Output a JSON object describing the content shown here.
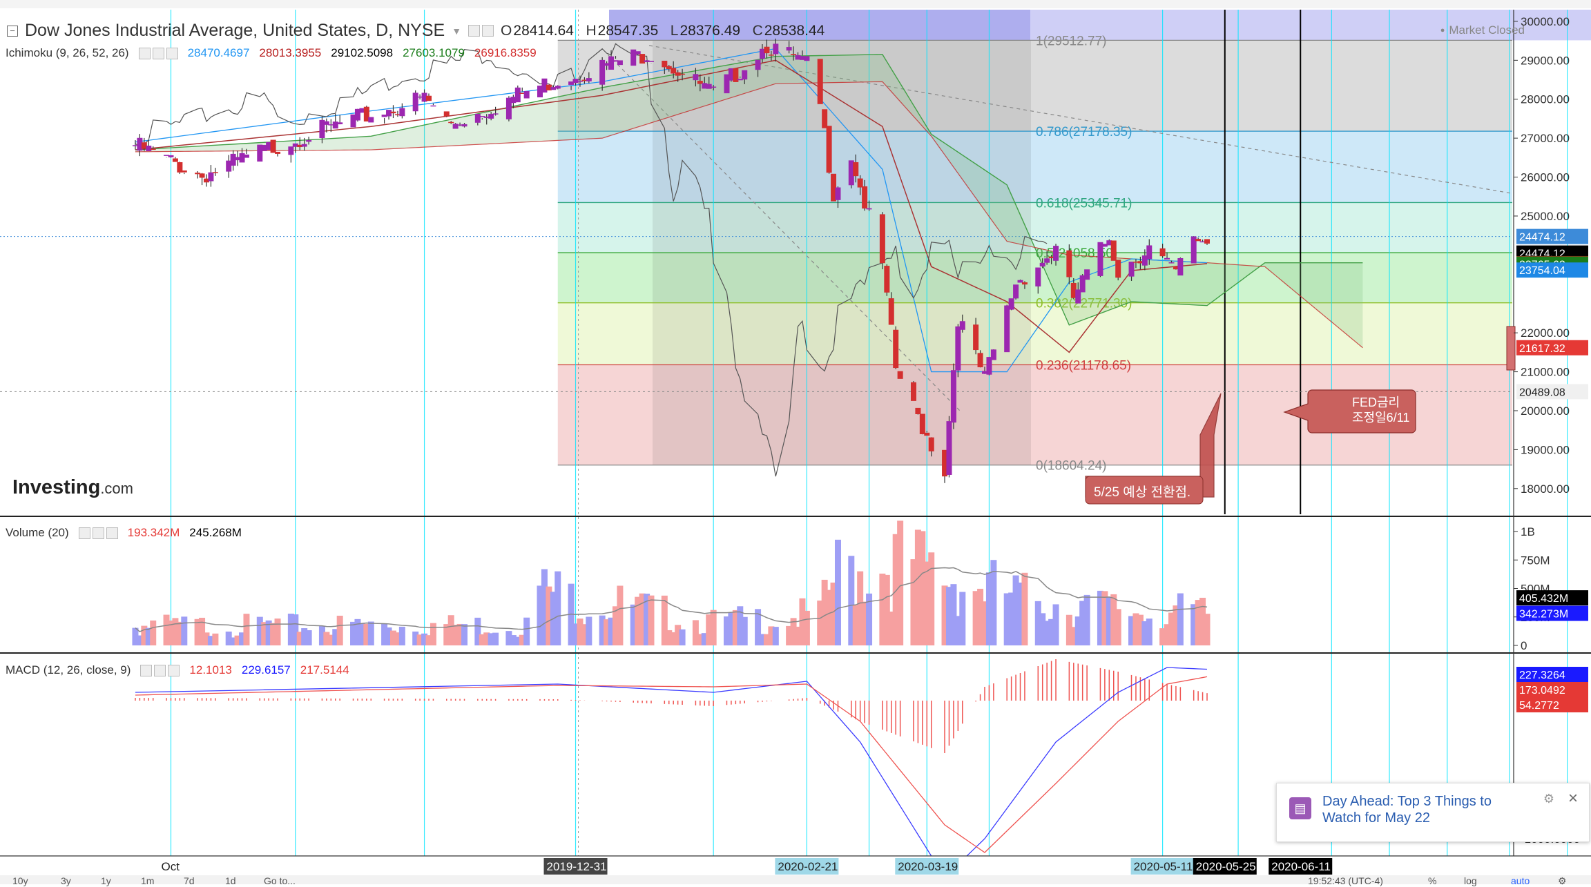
{
  "header": {
    "title": "Dow Jones Industrial Average, United States, D, NYSE",
    "open_label": "O",
    "open": "28414.64",
    "high_label": "H",
    "high": "28547.35",
    "low_label": "L",
    "low": "28376.49",
    "close_label": "C",
    "close": "28538.44",
    "market_status": "Market Closed"
  },
  "indicators": {
    "ichimoku": {
      "label": "Ichimoku (9, 26, 52, 26)",
      "values": [
        "28470.4697",
        "28013.3955",
        "29102.5098",
        "27603.1079",
        "26916.8359"
      ],
      "colors": [
        "#2196f3",
        "#b71c1c",
        "#000000",
        "#1b7d1b",
        "#d32f2f"
      ]
    },
    "volume": {
      "label": "Volume (20)",
      "values": [
        "193.342M",
        "245.268M"
      ],
      "colors": [
        "#e53935",
        "#000000"
      ]
    },
    "macd": {
      "label": "MACD (12, 26, close, 9)",
      "values": [
        "12.1013",
        "229.6157",
        "217.5144"
      ],
      "colors": [
        "#e53935",
        "#1a1aff",
        "#e53935"
      ]
    }
  },
  "logo": {
    "brand": "Investing",
    "suffix": ".com"
  },
  "colors": {
    "bull": "#9c27b0",
    "bear": "#d32f2f",
    "cyan_line": "#00e5ff",
    "vol_up": "#9e9ef5",
    "vol_down": "#f6a0a0",
    "fib_1": "#d0d0d0",
    "fib_786": "#bde0f5",
    "fib_618": "#c8f0e4",
    "fib_5": "#bdf0bd",
    "fib_382": "#eaf7c9",
    "fib_236": "#f3c7c7"
  },
  "fibonacci": [
    {
      "label": "1(29512.77)",
      "value": 29512.77,
      "color": "#888888"
    },
    {
      "label": "0.786(27178.35)",
      "value": 27178.35,
      "color": "#3399cc"
    },
    {
      "label": "0.618(25345.71)",
      "value": 25345.71,
      "color": "#2fa67f"
    },
    {
      "label": "0.5(24058.50)",
      "value": 24058.5,
      "color": "#3aa83a"
    },
    {
      "label": "0.382(22771.30)",
      "value": 22771.3,
      "color": "#8fbf2a"
    },
    {
      "label": "0.236(21178.65)",
      "value": 21178.65,
      "color": "#d04040"
    },
    {
      "label": "0(18604.24)",
      "value": 18604.24,
      "color": "#888888"
    }
  ],
  "annotations": {
    "turn": "5/25 예상 전환점.",
    "fed_line1": "FED금리",
    "fed_line2": "조정일6/11"
  },
  "price_axis": {
    "ticks": [
      "30000.00",
      "29000.00",
      "28000.00",
      "27000.00",
      "26000.00",
      "25000.00",
      "22000.00",
      "21000.00",
      "20000.00",
      "19000.00",
      "18000.00"
    ],
    "tick_values": [
      30000,
      29000,
      28000,
      27000,
      26000,
      25000,
      22000,
      21000,
      20000,
      19000,
      18000
    ],
    "badges": [
      {
        "text": "24474.12",
        "value": 24474.12,
        "bg": "#3d8bd9"
      },
      {
        "text": "24474.12",
        "value": 24474.12,
        "bg": "#000000",
        "offset": 1
      },
      {
        "text": "23777.19",
        "value": 23777.19,
        "bg": "#b71c1c"
      },
      {
        "text": "23765.62",
        "value": 23765.62,
        "bg": "#1b7d1b"
      },
      {
        "text": "23754.04",
        "value": 23754.04,
        "bg": "#1e88e5"
      },
      {
        "text": "21617.32",
        "value": 21617.32,
        "bg": "#e53935"
      },
      {
        "text": "20489.08",
        "value": 20489.08,
        "bg": "#f0f0f0"
      }
    ]
  },
  "volume_axis": {
    "ticks": [
      "1B",
      "750M",
      "500M",
      "250M",
      "0"
    ],
    "tick_values": [
      1000,
      750,
      500,
      250,
      0
    ],
    "badges": [
      {
        "text": "405.432M",
        "value": 405.432,
        "bg": "#000000"
      },
      {
        "text": "342.273M",
        "value": 342.273,
        "bg": "#1a1aff"
      }
    ]
  },
  "macd_axis": {
    "ticks": [
      "-1000.0000"
    ],
    "tick_values": [
      -1000
    ],
    "badges": [
      {
        "text": "227.3264",
        "value": 227.3264,
        "bg": "#1a1aff"
      },
      {
        "text": "173.0492",
        "value": 173.0492,
        "bg": "#e53935"
      },
      {
        "text": "54.2772",
        "value": 54.2772,
        "bg": "#e53935"
      }
    ]
  },
  "time_axis": {
    "labels": [
      {
        "text": "Oct",
        "date": "2019-10-01",
        "style": "plain"
      },
      {
        "text": "2019-12-31",
        "date": "2019-12-31",
        "style": "dark"
      },
      {
        "text": "2020-02-21",
        "date": "2020-02-21",
        "style": "teal"
      },
      {
        "text": "2020-03-19",
        "date": "2020-03-19",
        "style": "teal"
      },
      {
        "text": "2020-05-11",
        "date": "2020-05-11",
        "style": "teal"
      },
      {
        "text": "2020-05-25",
        "date": "2020-05-25",
        "style": "black"
      },
      {
        "text": "2020-06-11",
        "date": "2020-06-11",
        "style": "black"
      }
    ]
  },
  "bottom_bar": {
    "timeframes": [
      "10y",
      "3y",
      "1y",
      "1m",
      "7d",
      "1d",
      "Go to..."
    ],
    "clock": "19:52:43 (UTC-4)",
    "right": [
      "%",
      "log",
      "auto"
    ]
  },
  "toast": {
    "title": "Day Ahead: Top 3 Things to Watch for May 22"
  },
  "chart_data": {
    "type": "candlestick",
    "title": "Dow Jones Industrial Average, United States, D, NYSE",
    "date_range": [
      "2019-09-23",
      "2020-05-21"
    ],
    "price_range": [
      17500,
      30300
    ],
    "price_anchors": [
      {
        "date": "2019-09-23",
        "close": 26950
      },
      {
        "date": "2019-10-08",
        "close": 26160
      },
      {
        "date": "2019-10-28",
        "close": 27090
      },
      {
        "date": "2019-11-27",
        "close": 28160
      },
      {
        "date": "2019-12-03",
        "close": 27500
      },
      {
        "date": "2019-12-27",
        "close": 28650
      },
      {
        "date": "2020-01-17",
        "close": 29350
      },
      {
        "date": "2020-01-31",
        "close": 28250
      },
      {
        "date": "2020-02-12",
        "close": 29550
      },
      {
        "date": "2020-02-21",
        "close": 28990
      },
      {
        "date": "2020-02-24",
        "close": 27950
      },
      {
        "date": "2020-02-27",
        "close": 25760
      },
      {
        "date": "2020-03-02",
        "close": 26700
      },
      {
        "date": "2020-03-09",
        "close": 23850
      },
      {
        "date": "2020-03-12",
        "close": 21200
      },
      {
        "date": "2020-03-16",
        "close": 20190
      },
      {
        "date": "2020-03-23",
        "close": 18590
      },
      {
        "date": "2020-03-26",
        "close": 22550
      },
      {
        "date": "2020-04-01",
        "close": 20940
      },
      {
        "date": "2020-04-08",
        "close": 23430
      },
      {
        "date": "2020-04-17",
        "close": 24240
      },
      {
        "date": "2020-04-21",
        "close": 23020
      },
      {
        "date": "2020-04-29",
        "close": 24630
      },
      {
        "date": "2020-05-01",
        "close": 23720
      },
      {
        "date": "2020-05-08",
        "close": 24330
      },
      {
        "date": "2020-05-14",
        "close": 23630
      },
      {
        "date": "2020-05-18",
        "close": 24600
      },
      {
        "date": "2020-05-21",
        "close": 24474
      }
    ],
    "volume_range": [
      0,
      1000
    ],
    "volume_unit": "M",
    "volume_anchors": [
      {
        "date": "2019-09-23",
        "v": 230
      },
      {
        "date": "2019-12-20",
        "v": 240
      },
      {
        "date": "2019-12-23",
        "v": 640
      },
      {
        "date": "2020-01-31",
        "v": 270
      },
      {
        "date": "2020-02-24",
        "v": 360
      },
      {
        "date": "2020-02-28",
        "v": 860
      },
      {
        "date": "2020-03-13",
        "v": 980
      },
      {
        "date": "2020-03-23",
        "v": 810
      },
      {
        "date": "2020-04-09",
        "v": 560
      },
      {
        "date": "2020-05-01",
        "v": 420
      },
      {
        "date": "2020-05-21",
        "v": 370
      }
    ],
    "macd_range": [
      -1400,
      400
    ],
    "macd_anchors": [
      {
        "date": "2019-09-23",
        "macd": 60,
        "signal": 40
      },
      {
        "date": "2019-12-27",
        "macd": 120,
        "signal": 110
      },
      {
        "date": "2020-01-31",
        "macd": 60,
        "signal": 100
      },
      {
        "date": "2020-02-21",
        "macd": 140,
        "signal": 120
      },
      {
        "date": "2020-03-04",
        "macd": -300,
        "signal": -150
      },
      {
        "date": "2020-03-23",
        "macd": -1280,
        "signal": -900
      },
      {
        "date": "2020-04-01",
        "macd": -1000,
        "signal": -1100
      },
      {
        "date": "2020-04-17",
        "macd": -300,
        "signal": -600
      },
      {
        "date": "2020-05-01",
        "macd": 60,
        "signal": -150
      },
      {
        "date": "2020-05-12",
        "macd": 240,
        "signal": 120
      },
      {
        "date": "2020-05-21",
        "macd": 227.3264,
        "signal": 173.0492
      }
    ],
    "ichimoku_anchors": [
      {
        "date": "2019-09-23",
        "a": 26700,
        "b": 26650,
        "tenkan": 26900,
        "kijun": 26700
      },
      {
        "date": "2019-11-15",
        "a": 27050,
        "b": 26700,
        "tenkan": 27700,
        "kijun": 27300
      },
      {
        "date": "2020-01-06",
        "a": 28300,
        "b": 27000,
        "tenkan": 28450,
        "kijun": 28100
      },
      {
        "date": "2020-02-14",
        "a": 29100,
        "b": 28400,
        "tenkan": 29300,
        "kijun": 29000
      },
      {
        "date": "2020-03-09",
        "a": 29150,
        "b": 28450,
        "tenkan": 26200,
        "kijun": 27300
      },
      {
        "date": "2020-03-20",
        "a": 27100,
        "b": 27050,
        "tenkan": 21000,
        "kijun": 23700
      },
      {
        "date": "2020-04-06",
        "a": 25800,
        "b": 24350,
        "tenkan": 21000,
        "kijun": 22800
      },
      {
        "date": "2020-04-20",
        "a": 22200,
        "b": 24000,
        "tenkan": 23300,
        "kijun": 21500
      },
      {
        "date": "2020-05-04",
        "a": 22800,
        "b": 23900,
        "tenkan": 23900,
        "kijun": 23600
      },
      {
        "date": "2020-05-21",
        "a": 22700,
        "b": 23800,
        "tenkan": 23800,
        "kijun": 23777.19
      },
      {
        "date": "2020-06-03",
        "a": 23800,
        "b": 23700,
        "tenkan": null,
        "kijun": null
      },
      {
        "date": "2020-06-25",
        "a": 23800,
        "b": 21617.32,
        "tenkan": null,
        "kijun": null
      }
    ],
    "fib_range_dates": [
      "2019-12-27",
      "2020-04-17"
    ],
    "vertical_cyan_dates": [
      "2019-10-01",
      "2019-10-29",
      "2019-11-27",
      "2019-12-31",
      "2020-01-31",
      "2020-02-21",
      "2020-03-06",
      "2020-03-19",
      "2020-04-02",
      "2020-05-11",
      "2020-05-28",
      "2020-06-18",
      "2020-07-01",
      "2020-07-14",
      "2020-07-28",
      "2020-08-10"
    ],
    "vertical_black_dates": [
      "2020-05-25",
      "2020-06-11"
    ]
  }
}
